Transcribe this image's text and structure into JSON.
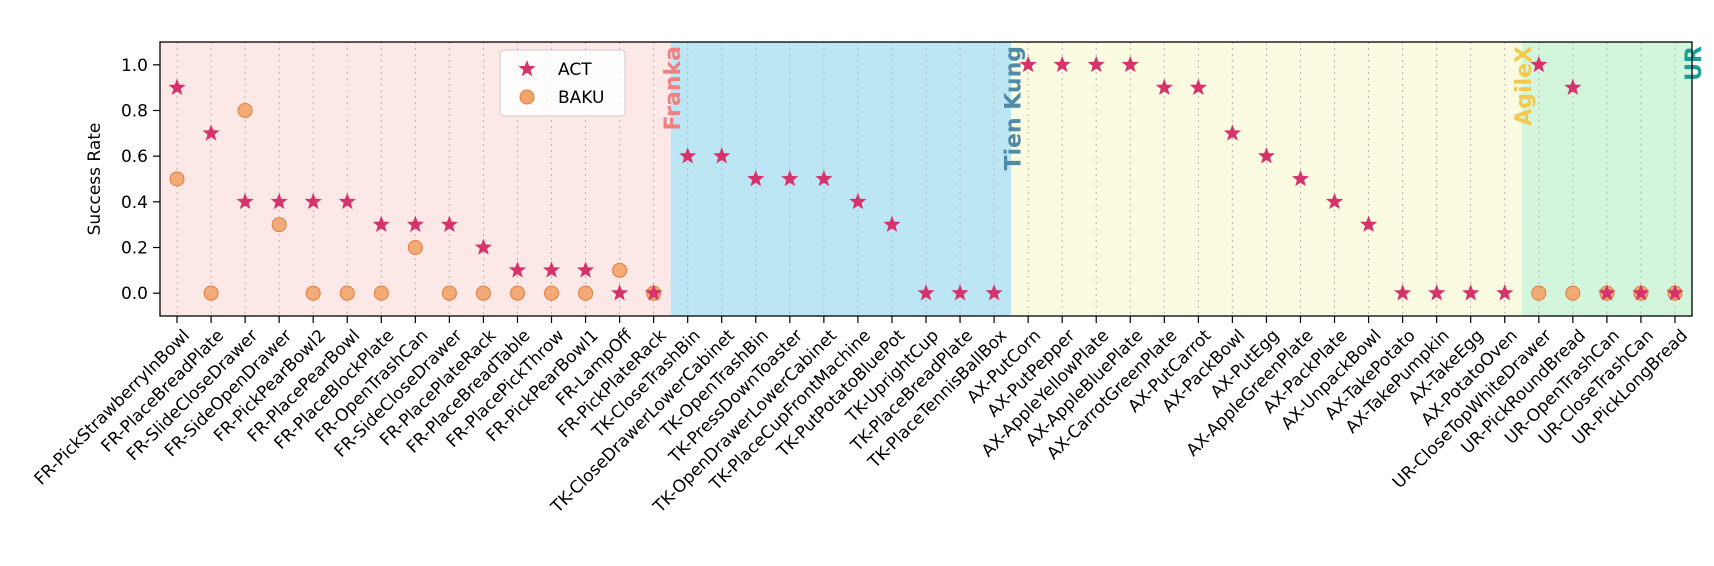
{
  "chart_data": {
    "type": "scatter",
    "title": "",
    "xlabel": "",
    "ylabel": "Success Rate",
    "ylim": [
      -0.1,
      1.1
    ],
    "yticks": [
      "0.0",
      "0.2",
      "0.4",
      "0.6",
      "0.8",
      "1.0"
    ],
    "legend_position": "top-center",
    "grid": "vertical dotted",
    "categories": [
      "FR-PickStrawberryInBowl",
      "FR-PlaceBreadPlate",
      "FR-SlideCloseDrawer",
      "FR-SideOpenDrawer",
      "FR-PickPearBowl2",
      "FR-PlacePearBowl",
      "FR-PlaceBlockPlate",
      "FR-OpenTrashCan",
      "FR-SideCloseDrawer",
      "FR-PlacePlateRack",
      "FR-PlaceBreadTable",
      "FR-PlacePickThrow",
      "FR-PickPearBowl1",
      "FR-LampOff",
      "FR-PickPlateRack",
      "TK-CloseTrashBin",
      "TK-CloseDrawerLowerCabinet",
      "TK-OpenTrashBin",
      "TK-PressDownToaster",
      "TK-OpenDrawerLowerCabinet",
      "TK-PlaceCupFrontMachine",
      "TK-PutPotatoBluePot",
      "TK-UprightCup",
      "TK-PlaceBreadPlate",
      "TK-PlaceTennisBallBox",
      "AX-PutCorn",
      "AX-PutPepper",
      "AX-AppleYellowPlate",
      "AX-AppleBluePlate",
      "AX-CarrotGreenPlate",
      "AX-PutCarrot",
      "AX-PackBowl",
      "AX-PutEgg",
      "AX-AppleGreenPlate",
      "AX-PackPlate",
      "AX-UnpackBowl",
      "AX-TakePotato",
      "AX-TakePumpkin",
      "AX-TakeEgg",
      "AX-PotatoOven",
      "UR-CloseTopWhiteDrawer",
      "UR-PickRoundBread",
      "UR-OpenTrashCan",
      "UR-CloseTrashCan",
      "UR-PickLongBread"
    ],
    "series": [
      {
        "name": "ACT",
        "marker": "star",
        "color": "#d6336c",
        "values": [
          0.9,
          0.7,
          0.4,
          0.4,
          0.4,
          0.4,
          0.3,
          0.3,
          0.3,
          0.2,
          0.1,
          0.1,
          0.1,
          0.0,
          0.0,
          0.6,
          0.6,
          0.5,
          0.5,
          0.5,
          0.4,
          0.3,
          0.0,
          0.0,
          0.0,
          1.0,
          1.0,
          1.0,
          1.0,
          0.9,
          0.9,
          0.7,
          0.6,
          0.5,
          0.4,
          0.3,
          0.0,
          0.0,
          0.0,
          0.0,
          1.0,
          0.9,
          0.0,
          0.0,
          0.0
        ]
      },
      {
        "name": "BAKU",
        "marker": "circle",
        "color": "#f4a46a",
        "values": [
          0.5,
          0.0,
          0.8,
          0.3,
          0.0,
          0.0,
          0.0,
          0.2,
          0.0,
          0.0,
          0.0,
          0.0,
          0.0,
          0.1,
          0.0,
          null,
          null,
          null,
          null,
          null,
          null,
          null,
          null,
          null,
          null,
          null,
          null,
          null,
          null,
          null,
          null,
          null,
          null,
          null,
          null,
          null,
          null,
          null,
          null,
          null,
          0.0,
          0.0,
          0.0,
          0.0,
          0.0
        ]
      }
    ],
    "regions": [
      {
        "label": "Franka",
        "start": 0,
        "end": 14,
        "fill": "#fde8e8",
        "text_color": "#f08080"
      },
      {
        "label": "Tien Kung",
        "start": 15,
        "end": 24,
        "fill": "#bde6f4",
        "text_color": "#4f8aa6"
      },
      {
        "label": "AgileX",
        "start": 25,
        "end": 39,
        "fill": "#fafbe0",
        "text_color": "#f2c94c"
      },
      {
        "label": "UR",
        "start": 40,
        "end": 44,
        "fill": "#d2f5dc",
        "text_color": "#1a9e96"
      }
    ]
  }
}
